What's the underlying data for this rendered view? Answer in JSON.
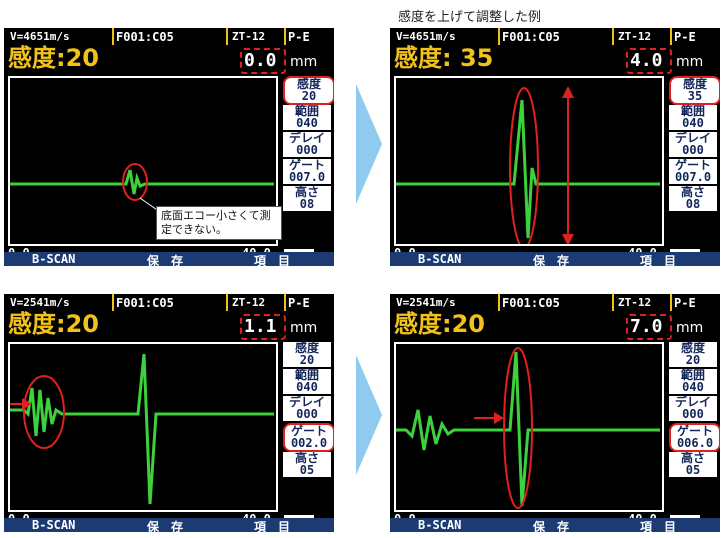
{
  "caption": "感度を上げて調整した例",
  "panels": [
    {
      "velocity": "V=4651m/s",
      "file": "F001:C05",
      "probe": "ZT-12",
      "mode": "P-E",
      "sensitivity": "感度:20",
      "depth": "0.0",
      "unit": "mm",
      "side": [
        {
          "k": "感度",
          "v": "20"
        },
        {
          "k": "範囲",
          "v": "040"
        },
        {
          "k": "デレイ",
          "v": "000"
        },
        {
          "k": "ゲート",
          "v": "007.0"
        },
        {
          "k": "高さ",
          "v": "08"
        }
      ],
      "range_start": "0.0",
      "range_end": "40.0",
      "menu": [
        "B-SCAN",
        "保　存",
        "項　目"
      ],
      "callout": "底面エコー小さくて測定できない。"
    },
    {
      "velocity": "V=4651m/s",
      "file": "F001:C05",
      "probe": "ZT-12",
      "mode": "P-E",
      "sensitivity": "感度: 35",
      "depth": "4.0",
      "unit": "mm",
      "side": [
        {
          "k": "感度",
          "v": "35"
        },
        {
          "k": "範囲",
          "v": "040"
        },
        {
          "k": "デレイ",
          "v": "000"
        },
        {
          "k": "ゲート",
          "v": "007.0"
        },
        {
          "k": "高さ",
          "v": "08"
        }
      ],
      "range_start": "0.0",
      "range_end": "40.0",
      "menu": [
        "B-SCAN",
        "保　存",
        "項　目"
      ]
    },
    {
      "velocity": "V=2541m/s",
      "file": "F001:C05",
      "probe": "ZT-12",
      "mode": "P-E",
      "sensitivity": "感度:20",
      "depth": "1.1",
      "unit": "mm",
      "side": [
        {
          "k": "感度",
          "v": "20"
        },
        {
          "k": "範囲",
          "v": "040"
        },
        {
          "k": "デレイ",
          "v": "000"
        },
        {
          "k": "ゲート",
          "v": "002.0"
        },
        {
          "k": "高さ",
          "v": "05"
        }
      ],
      "range_start": "0.0",
      "range_end": "40.0",
      "menu": [
        "B-SCAN",
        "保　存",
        "項　目"
      ]
    },
    {
      "velocity": "V=2541m/s",
      "file": "F001:C05",
      "probe": "ZT-12",
      "mode": "P-E",
      "sensitivity": "感度:20",
      "depth": "7.0",
      "unit": "mm",
      "side": [
        {
          "k": "感度",
          "v": "20"
        },
        {
          "k": "範囲",
          "v": "040"
        },
        {
          "k": "デレイ",
          "v": "000"
        },
        {
          "k": "ゲート",
          "v": "006.0"
        },
        {
          "k": "高さ",
          "v": "05"
        }
      ],
      "range_start": "0.0",
      "range_end": "40.0",
      "menu": [
        "B-SCAN",
        "保　存",
        "項　目"
      ]
    }
  ],
  "colors": {
    "wave": "#3cd23c",
    "accent": "#f0c21a",
    "annotation": "#e02020",
    "arrow": "#8fcbee",
    "menu": "#1d3b73"
  }
}
